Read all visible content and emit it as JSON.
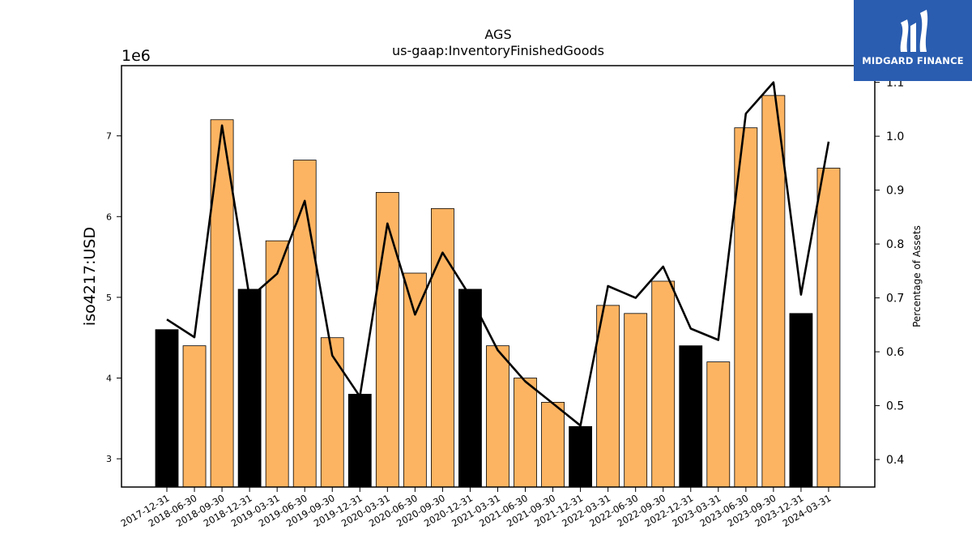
{
  "logo": {
    "text": "MIDGARD FINANCE"
  },
  "chart_data": {
    "type": "bar",
    "title": "AGS",
    "subtitle": "us-gaap:InventoryFinishedGoods",
    "ylabel": "iso4217:USD",
    "y_offset_label": "1e6",
    "y2label": "Percentage of Assets",
    "ylim": [
      2.65,
      7.87
    ],
    "y2lim": [
      0.349,
      1.131
    ],
    "yticks": [
      3,
      4,
      5,
      6,
      7
    ],
    "y2ticks": [
      0.4,
      0.5,
      0.6,
      0.7,
      0.8,
      0.9,
      1.0,
      1.1
    ],
    "y2tick_labels": [
      "0.4",
      "0.5",
      "0.6",
      "0.7",
      "0.8",
      "0.9",
      "1.0",
      "1.1"
    ],
    "grid": false,
    "colors": {
      "annual": "#000000",
      "quarterly": "#fdb462",
      "line": "#000000"
    },
    "categories": [
      "2017-12-31",
      "2018-06-30",
      "2018-09-30",
      "2018-12-31",
      "2019-03-31",
      "2019-06-30",
      "2019-09-30",
      "2019-12-31",
      "2020-03-31",
      "2020-06-30",
      "2020-09-30",
      "2020-12-31",
      "2021-03-31",
      "2021-06-30",
      "2021-09-30",
      "2021-12-31",
      "2022-03-31",
      "2022-06-30",
      "2022-09-30",
      "2022-12-31",
      "2023-03-31",
      "2023-06-30",
      "2023-09-30",
      "2023-12-31",
      "2024-03-31"
    ],
    "series": [
      {
        "values": [
          4.6,
          4.4,
          7.2,
          5.1,
          5.7,
          6.7,
          4.5,
          3.8,
          6.3,
          5.3,
          6.1,
          5.1,
          4.4,
          4.0,
          3.7,
          3.4,
          4.9,
          4.8,
          5.2,
          4.4,
          4.2,
          7.1,
          7.5,
          4.8,
          6.6
        ],
        "annual": [
          true,
          false,
          false,
          true,
          false,
          false,
          false,
          true,
          false,
          false,
          false,
          true,
          false,
          false,
          false,
          true,
          false,
          false,
          false,
          true,
          false,
          false,
          false,
          true,
          false
        ]
      },
      {
        "axis": "right",
        "values": [
          0.66,
          0.627,
          1.02,
          0.7,
          0.745,
          0.88,
          0.593,
          0.517,
          0.838,
          0.669,
          0.784,
          0.703,
          0.603,
          0.545,
          0.504,
          0.463,
          0.722,
          0.7,
          0.758,
          0.643,
          0.622,
          1.042,
          1.1,
          0.706,
          0.99
        ]
      }
    ]
  }
}
